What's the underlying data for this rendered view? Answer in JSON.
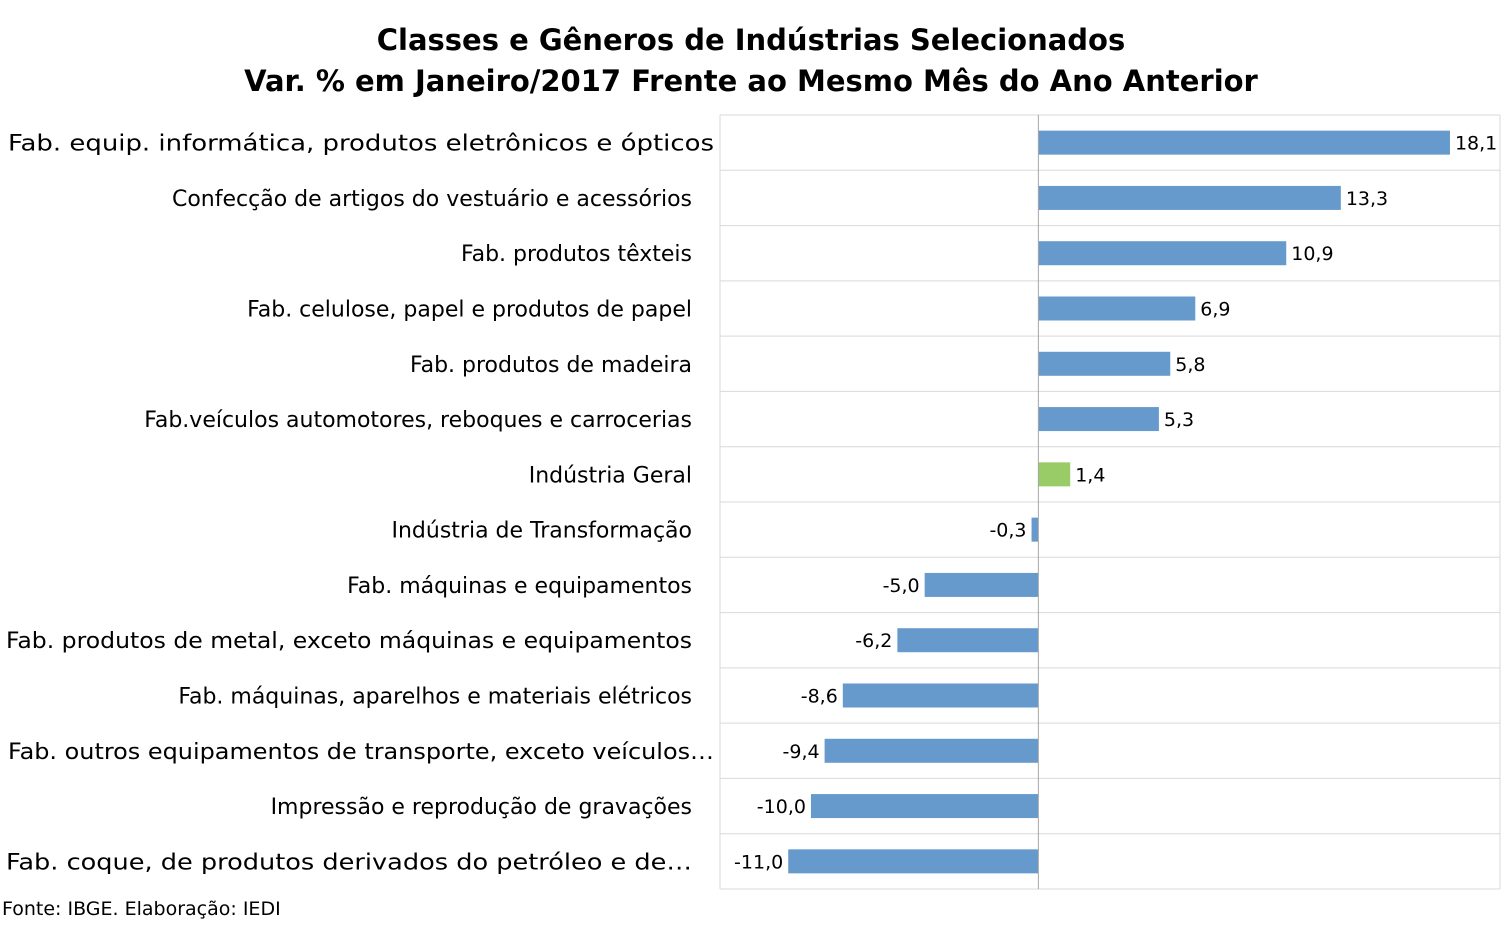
{
  "chart_data": {
    "type": "bar",
    "orientation": "horizontal",
    "title": "Classes e Gêneros de Indústrias Selecionados",
    "subtitle": "Var. % em Janeiro/2017 Frente ao Mesmo Mês do Ano Anterior",
    "source": "Fonte: IBGE. Elaboração: IEDI",
    "categories": [
      "Fab. equip. informática, produtos eletrônicos e ópticos",
      "Confecção de artigos do vestuário e acessórios",
      "Fab. produtos têxteis",
      "Fab. celulose, papel e produtos de papel",
      "Fab. produtos de madeira",
      "Fab.veículos automotores, reboques e carrocerias",
      "Indústria Geral",
      "Indústria de Transformação",
      "Fab. máquinas e equipamentos",
      "Fab. produtos de metal, exceto máquinas e equipamentos",
      "Fab. máquinas, aparelhos e materiais elétricos",
      "Fab. outros equipamentos de transporte, exceto veículos…",
      "Impressão e reprodução de gravações",
      "Fab. coque, de produtos derivados do petróleo e de…"
    ],
    "values": [
      18.1,
      13.3,
      10.9,
      6.9,
      5.8,
      5.3,
      1.4,
      -0.3,
      -5.0,
      -6.2,
      -8.6,
      -9.4,
      -10.0,
      -11.0
    ],
    "data_labels": [
      "18,1",
      "13,3",
      "10,9",
      "6,9",
      "5,8",
      "5,3",
      "1,4",
      "-0,3",
      "-5,0",
      "-6,2",
      "-8,6",
      "-9,4",
      "-10,0",
      "-11,0"
    ],
    "highlight_category": "Indústria Geral",
    "colors": {
      "default": "#6699CC",
      "highlight": "#99CC66",
      "gridline": "#D9D9D9",
      "axis": "#A6A6A6"
    },
    "xlim": [
      -14,
      20.3
    ],
    "grid": true,
    "legend": "none"
  }
}
